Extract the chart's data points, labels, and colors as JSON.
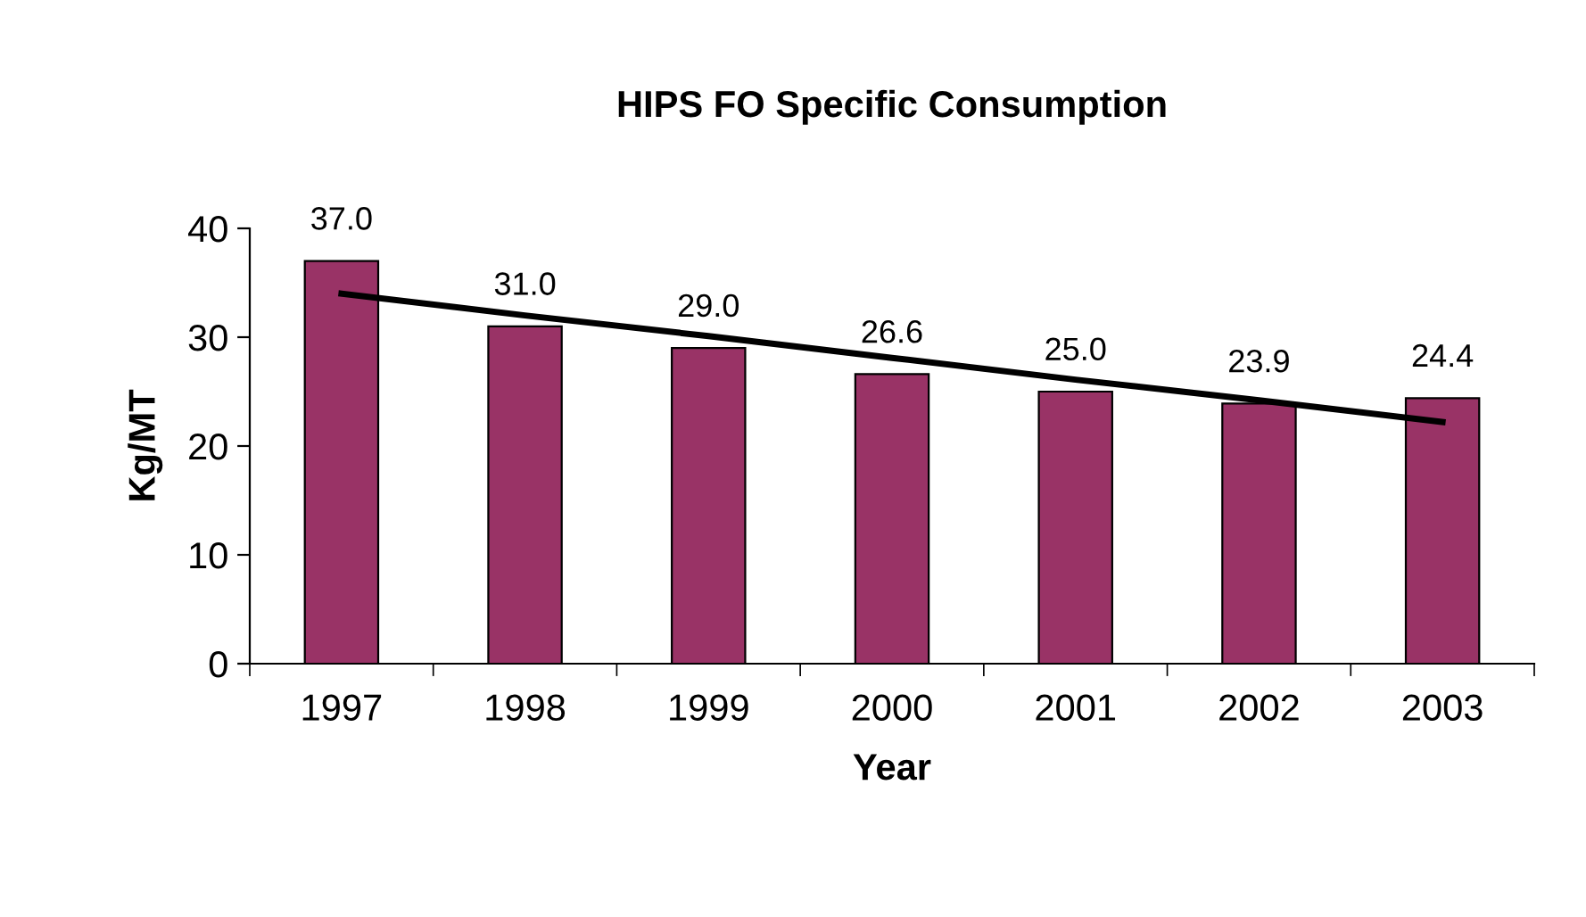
{
  "chart_data": {
    "type": "bar",
    "title": "HIPS FO Specific Consumption",
    "xlabel": "Year",
    "ylabel": "Kg/MT",
    "categories": [
      "1997",
      "1998",
      "1999",
      "2000",
      "2001",
      "2002",
      "2003"
    ],
    "series": [
      {
        "color": "#993366",
        "values": [
          37.0,
          31.0,
          29.0,
          26.6,
          25.0,
          23.9,
          24.4
        ],
        "value_labels": [
          "37.0",
          "31.0",
          "29.0",
          "26.6",
          "25.0",
          "23.9",
          "24.4"
        ]
      },
      {
        "type": "line",
        "color": "#000000",
        "values": [
          34.0,
          32.0,
          30.1,
          28.1,
          26.1,
          24.2,
          22.2
        ]
      }
    ],
    "ylim": [
      0,
      40
    ],
    "yticks": [
      0,
      10,
      20,
      30,
      40
    ]
  }
}
